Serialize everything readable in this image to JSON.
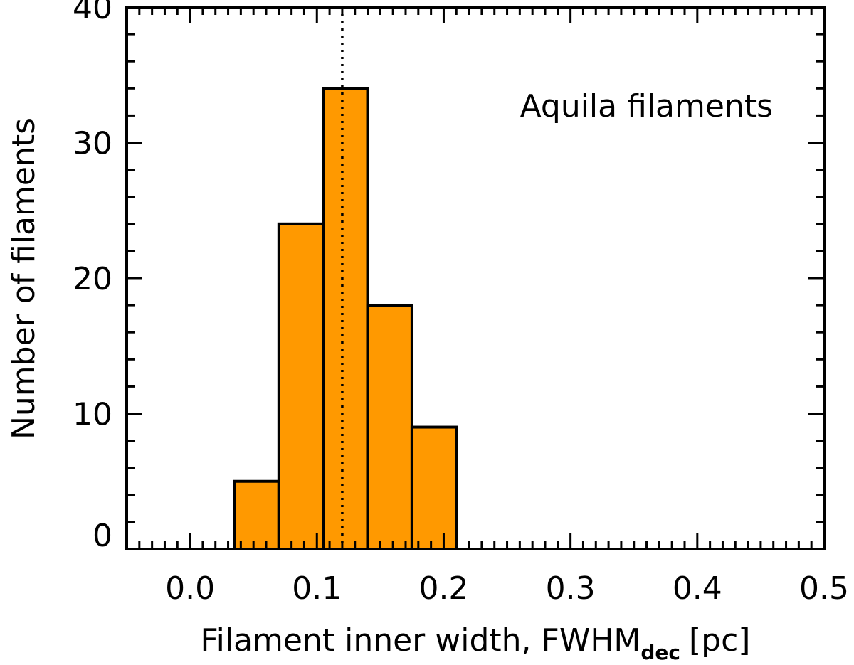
{
  "chart_data": {
    "type": "bar",
    "subtype": "histogram",
    "bins": [
      {
        "x0": 0.035,
        "x1": 0.07,
        "count": 5
      },
      {
        "x0": 0.07,
        "x1": 0.105,
        "count": 24
      },
      {
        "x0": 0.105,
        "x1": 0.14,
        "count": 34
      },
      {
        "x0": 0.14,
        "x1": 0.175,
        "count": 18
      },
      {
        "x0": 0.175,
        "x1": 0.21,
        "count": 9
      }
    ],
    "reference_line": {
      "x": 0.12,
      "style": "dotted"
    },
    "xlabel": "Filament inner width, FWHM",
    "xlabel_subscript": "dec",
    "xlabel_unit": "[pc]",
    "ylabel": "Number of filaments",
    "annotation": "Aquila filaments",
    "xlim": [
      -0.05,
      0.5
    ],
    "ylim": [
      0,
      40
    ],
    "x_major_ticks": [
      0.0,
      0.1,
      0.2,
      0.3,
      0.4,
      0.5
    ],
    "x_tick_labels": [
      "0.0",
      "0.1",
      "0.2",
      "0.3",
      "0.4",
      "0.5"
    ],
    "x_minor_step": 0.01,
    "y_major_ticks": [
      0,
      10,
      20,
      30,
      40
    ],
    "y_tick_labels": [
      "0",
      "10",
      "20",
      "30",
      "40"
    ],
    "y_minor_step": 2,
    "fill_color": "#ff9900",
    "grid": false
  }
}
